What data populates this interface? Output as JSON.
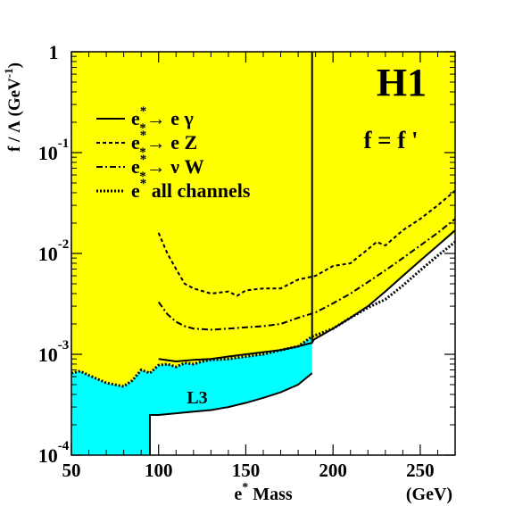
{
  "chart_data": {
    "type": "line",
    "title": "",
    "experiment_label": "H1",
    "coupling_label": "f = f '",
    "xlabel": "e* Mass",
    "xlabel_parts": {
      "base": "e",
      "sup": "*",
      "rest": " Mass"
    },
    "xunit": "(GeV)",
    "ylabel": "f / Λ (GeV⁻¹)",
    "ylabel_parts": {
      "main": "f / Λ (GeV",
      "sup": "-1",
      "close": ")"
    },
    "xlim": [
      50,
      270
    ],
    "ylim": [
      0.0001,
      1
    ],
    "y_scale": "log",
    "grid": false,
    "legend_position": "upper-left",
    "x_ticks": [
      50,
      100,
      150,
      200,
      250
    ],
    "y_ticks": [
      {
        "value": 1,
        "base": "1",
        "exp": ""
      },
      {
        "value": 0.1,
        "base": "10",
        "exp": "-1"
      },
      {
        "value": 0.01,
        "base": "10",
        "exp": "-2"
      },
      {
        "value": 0.001,
        "base": "10",
        "exp": "-3"
      },
      {
        "value": 0.0001,
        "base": "10",
        "exp": "-4"
      }
    ],
    "series": [
      {
        "name": "e* → e γ",
        "legend": {
          "base": "e",
          "sup": "*",
          "sub": "*",
          "rest": "→ e γ"
        },
        "style": "solid",
        "width": 2,
        "x": [
          100,
          110,
          120,
          130,
          140,
          150,
          160,
          170,
          180,
          188,
          189,
          195,
          200,
          210,
          220,
          230,
          240,
          250,
          260,
          270
        ],
        "y": [
          0.0009,
          0.00085,
          0.00088,
          0.0009,
          0.00095,
          0.001,
          0.00105,
          0.0011,
          0.0012,
          0.0013,
          0.0014,
          0.0016,
          0.0018,
          0.0023,
          0.003,
          0.0042,
          0.006,
          0.0085,
          0.012,
          0.017
        ]
      },
      {
        "name": "e* → e Z",
        "legend": {
          "base": "e",
          "sup": "*",
          "sub": "*",
          "rest": "→ e Z"
        },
        "style": "dashed",
        "width": 2,
        "x": [
          100,
          105,
          110,
          115,
          120,
          130,
          140,
          145,
          150,
          160,
          170,
          180,
          190,
          200,
          210,
          220,
          225,
          230,
          240,
          250,
          260,
          270
        ],
        "y": [
          0.016,
          0.01,
          0.007,
          0.005,
          0.0045,
          0.004,
          0.0042,
          0.0038,
          0.0043,
          0.0045,
          0.0045,
          0.0055,
          0.006,
          0.0075,
          0.008,
          0.011,
          0.013,
          0.012,
          0.017,
          0.022,
          0.03,
          0.042
        ]
      },
      {
        "name": "e* → ν W",
        "legend": {
          "base": "e",
          "sup": "*",
          "sub": "*",
          "rest": "→ ν W"
        },
        "style": "dashdot",
        "width": 2,
        "x": [
          100,
          105,
          110,
          115,
          120,
          130,
          140,
          150,
          160,
          170,
          180,
          190,
          200,
          210,
          220,
          230,
          240,
          250,
          260,
          270
        ],
        "y": [
          0.0033,
          0.0025,
          0.0021,
          0.0019,
          0.0018,
          0.00175,
          0.0018,
          0.00185,
          0.0019,
          0.002,
          0.0023,
          0.0026,
          0.0032,
          0.004,
          0.0052,
          0.0068,
          0.009,
          0.012,
          0.016,
          0.022
        ]
      },
      {
        "name": "e* all channels",
        "legend": {
          "base": "e",
          "sup": "*",
          "sub": "",
          "rest": " all channels"
        },
        "style": "dotted",
        "width": 3,
        "x": [
          50,
          55,
          60,
          70,
          80,
          85,
          90,
          95,
          100,
          105,
          110,
          115,
          120,
          125,
          130,
          140,
          150,
          160,
          170,
          180,
          188,
          200,
          210,
          220,
          230,
          240,
          250,
          260,
          270
        ],
        "y": [
          0.00065,
          0.00068,
          0.00062,
          0.00052,
          0.00048,
          0.00055,
          0.0007,
          0.00065,
          0.00078,
          0.0008,
          0.00075,
          0.00082,
          0.0008,
          0.00085,
          0.00088,
          0.0009,
          0.00095,
          0.001,
          0.0011,
          0.0012,
          0.0015,
          0.0018,
          0.0023,
          0.0029,
          0.0035,
          0.0048,
          0.0068,
          0.0095,
          0.013
        ]
      }
    ],
    "excluded_regions": [
      {
        "name": "H1 excluded",
        "color": "#ffff00",
        "upper_edge": "top of plot",
        "right_vertical_at_x": 188,
        "x_right": [
          188,
          190,
          200,
          210,
          220,
          230,
          240,
          250,
          260,
          270
        ],
        "y_right": [
          0.00135,
          0.0014,
          0.0018,
          0.0023,
          0.0031,
          0.0042,
          0.0058,
          0.0082,
          0.012,
          0.016
        ]
      },
      {
        "name": "L3",
        "label": "L3",
        "color": "#00ffff",
        "upper_x": [
          50,
          55,
          60,
          70,
          80,
          85,
          90,
          95,
          100,
          105,
          110,
          115,
          120,
          125,
          130,
          140,
          150,
          160,
          170,
          180,
          188
        ],
        "upper_y": [
          0.00065,
          0.00068,
          0.00062,
          0.00052,
          0.00048,
          0.00055,
          0.0007,
          0.00065,
          0.00078,
          0.0008,
          0.00075,
          0.00082,
          0.0008,
          0.00085,
          0.00088,
          0.0009,
          0.00095,
          0.001,
          0.0011,
          0.0012,
          0.0015
        ],
        "lower_x": [
          188,
          180,
          170,
          160,
          150,
          140,
          130,
          120,
          110,
          100,
          95,
          95
        ],
        "lower_y": [
          0.00065,
          0.0005,
          0.00042,
          0.00037,
          0.00033,
          0.0003,
          0.00028,
          0.00027,
          0.00026,
          0.00025,
          0.00025,
          0.0001
        ]
      }
    ],
    "colors": {
      "h1_region": "#ffff00",
      "l3_region": "#00ffff",
      "curves": "#000000"
    }
  }
}
